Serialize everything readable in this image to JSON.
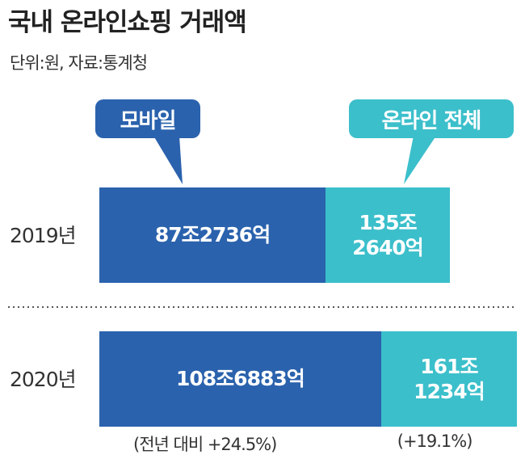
{
  "chart_data": {
    "type": "bar",
    "title": "국내 온라인쇼핑 거래액",
    "subtitle": "단위:원, 자료:통계청",
    "categories": [
      "2019년",
      "2020년"
    ],
    "series": [
      {
        "name": "온라인 전체",
        "color": "#3bbfcb",
        "values": [
          1352640,
          1611234
        ],
        "value_labels": [
          "135조\n2640억",
          "161조\n1234억"
        ]
      },
      {
        "name": "모바일",
        "color": "#2a62ad",
        "values": [
          872736,
          1086883
        ],
        "value_labels": [
          "87조2736억",
          "108조6883억"
        ]
      }
    ],
    "annotations": [
      "(전년 대비 +24.5%)",
      "(+19.1%)"
    ]
  }
}
